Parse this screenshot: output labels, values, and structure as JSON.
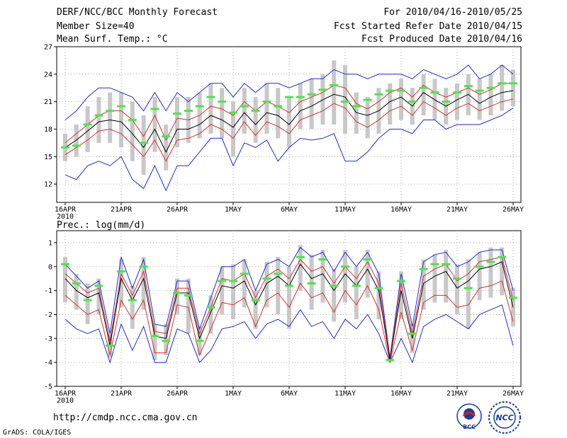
{
  "header": {
    "title": "DERF/NCC/BCC Monthly Forecast",
    "member_size": "Member Size=40",
    "variable": "Mean Surf. Temp.: °C",
    "period": "For 2010/04/16-2010/05/25",
    "fcst_started": "Fcst Started Refer Date 2010/04/15",
    "fcst_produced": "Fcst Produced Date 2010/04/16"
  },
  "footer": {
    "url": "http://cmdp.ncc.cma.gov.cn",
    "credit": "GrADS: COLA/IGES",
    "logo_bcc": "BCC",
    "logo_ncc": "NCC"
  },
  "colors": {
    "ensemble_mean": "#000000",
    "spread_band": "#d93030",
    "extremes": "#1f2ae0",
    "observed": "#48e848",
    "quartile_bar": "#c8c8c8",
    "grid": "#999999"
  },
  "chart_data": [
    {
      "type": "line",
      "title": "Mean Surf. Temp.: °C",
      "ylim": [
        10,
        27
      ],
      "yticks": [
        12,
        15,
        18,
        21,
        24,
        27
      ],
      "xticks": [
        {
          "day": 0,
          "label": "16APR",
          "sub": "2010"
        },
        {
          "day": 5,
          "label": "21APR"
        },
        {
          "day": 10,
          "label": "26APR"
        },
        {
          "day": 15,
          "label": "1MAY"
        },
        {
          "day": 20,
          "label": "6MAY"
        },
        {
          "day": 25,
          "label": "11MAY"
        },
        {
          "day": 30,
          "label": "16MAY"
        },
        {
          "day": 35,
          "label": "21MAY"
        },
        {
          "day": 40,
          "label": "26MAY"
        }
      ],
      "series": [
        {
          "name": "ensemble-mean",
          "values": [
            16.0,
            16.8,
            17.8,
            18.8,
            19.0,
            18.8,
            17.5,
            16.0,
            18.0,
            15.5,
            18.0,
            18.0,
            18.5,
            19.5,
            19.0,
            18.2,
            19.8,
            18.5,
            19.8,
            19.5,
            18.5,
            20.0,
            20.5,
            21.2,
            21.8,
            21.5,
            19.8,
            19.5,
            20.0,
            21.0,
            21.5,
            20.5,
            22.0,
            21.2,
            20.5,
            21.2,
            21.8,
            20.8,
            21.5,
            22.0,
            22.2
          ]
        },
        {
          "name": "spread-upper",
          "values": [
            16.5,
            17.5,
            18.5,
            19.5,
            20.0,
            20.0,
            19.0,
            17.2,
            19.5,
            16.8,
            19.2,
            19.0,
            19.5,
            20.5,
            20.2,
            19.5,
            21.0,
            20.0,
            21.0,
            20.5,
            19.8,
            21.0,
            21.5,
            22.0,
            22.8,
            22.5,
            20.8,
            20.2,
            21.0,
            22.0,
            22.5,
            21.5,
            22.8,
            22.0,
            21.5,
            22.0,
            22.5,
            21.8,
            22.3,
            23.0,
            23.0
          ]
        },
        {
          "name": "spread-lower",
          "values": [
            15.2,
            16.0,
            16.8,
            17.8,
            18.0,
            17.5,
            16.3,
            15.0,
            16.8,
            14.5,
            16.8,
            17.0,
            17.5,
            18.5,
            18.0,
            17.0,
            18.8,
            17.3,
            18.8,
            18.3,
            17.5,
            19.0,
            19.5,
            20.0,
            20.8,
            20.3,
            18.8,
            18.2,
            19.0,
            20.0,
            20.5,
            19.5,
            21.0,
            20.3,
            19.5,
            20.3,
            20.8,
            20.0,
            20.5,
            21.0,
            21.3
          ]
        },
        {
          "name": "max",
          "values": [
            19.0,
            20.0,
            21.5,
            22.5,
            22.5,
            22.0,
            21.5,
            20.0,
            22.0,
            20.0,
            22.0,
            21.0,
            22.0,
            23.0,
            23.0,
            21.5,
            23.0,
            22.0,
            23.0,
            23.0,
            22.5,
            23.0,
            23.5,
            23.5,
            24.5,
            24.0,
            24.0,
            23.5,
            24.0,
            24.0,
            24.0,
            23.5,
            24.5,
            24.0,
            23.5,
            24.0,
            25.0,
            23.5,
            24.0,
            25.0,
            24.0
          ]
        },
        {
          "name": "min",
          "values": [
            13.0,
            12.5,
            14.0,
            14.5,
            14.0,
            15.0,
            12.5,
            11.5,
            14.0,
            11.3,
            14.0,
            14.0,
            15.5,
            17.0,
            17.0,
            14.0,
            16.5,
            16.0,
            16.8,
            14.5,
            16.0,
            17.0,
            16.8,
            17.0,
            17.5,
            14.5,
            14.5,
            15.5,
            17.0,
            18.0,
            18.0,
            17.5,
            19.0,
            19.0,
            18.0,
            18.5,
            18.5,
            18.5,
            19.0,
            19.5,
            20.3
          ]
        },
        {
          "name": "observed",
          "values": [
            16.0,
            16.2,
            18.5,
            19.5,
            20.0,
            20.5,
            19.0,
            16.5,
            20.2,
            17.2,
            19.7,
            20.0,
            20.5,
            21.5,
            21.0,
            19.8,
            20.5,
            20.0,
            21.0,
            20.5,
            21.5,
            21.5,
            21.8,
            22.3,
            22.8,
            21.0,
            20.5,
            21.2,
            21.8,
            22.2,
            22.2,
            21.0,
            22.5,
            22.0,
            21.0,
            22.0,
            22.7,
            22.2,
            22.5,
            23.0,
            23.0
          ]
        },
        {
          "name": "quartile-top",
          "values": [
            17.5,
            18.5,
            20.5,
            21.5,
            22.0,
            22.0,
            21.0,
            19.5,
            21.5,
            18.5,
            21.5,
            21.5,
            22.0,
            23.0,
            22.5,
            21.0,
            22.5,
            21.5,
            23.0,
            22.5,
            21.5,
            23.0,
            23.5,
            24.0,
            25.5,
            25.0,
            22.0,
            21.5,
            22.5,
            23.0,
            23.5,
            22.5,
            24.0,
            23.5,
            22.5,
            23.0,
            24.0,
            23.5,
            24.0,
            25.0,
            24.5
          ]
        },
        {
          "name": "quartile-bottom",
          "values": [
            14.5,
            15.0,
            15.5,
            16.5,
            16.5,
            16.0,
            14.5,
            13.0,
            15.5,
            13.5,
            16.0,
            16.5,
            17.0,
            17.5,
            17.0,
            15.0,
            17.5,
            16.5,
            17.5,
            17.0,
            16.0,
            18.0,
            18.0,
            18.5,
            18.5,
            17.5,
            17.5,
            17.0,
            17.5,
            18.5,
            19.0,
            18.5,
            19.5,
            19.0,
            18.5,
            19.0,
            19.5,
            19.0,
            19.5,
            20.0,
            20.5
          ]
        }
      ]
    },
    {
      "type": "line",
      "title": "Prec.: log(mm/d)",
      "ylim": [
        -5,
        1.5
      ],
      "yticks": [
        -5,
        -4,
        -3,
        -2,
        -1,
        0,
        1
      ],
      "xticks": [
        {
          "day": 0,
          "label": "16APR",
          "sub": "2010"
        },
        {
          "day": 5,
          "label": "21APR"
        },
        {
          "day": 10,
          "label": "26APR"
        },
        {
          "day": 15,
          "label": "1MAY"
        },
        {
          "day": 20,
          "label": "6MAY"
        },
        {
          "day": 25,
          "label": "11MAY"
        },
        {
          "day": 30,
          "label": "16MAY"
        },
        {
          "day": 35,
          "label": "21MAY"
        },
        {
          "day": 40,
          "label": "26MAY"
        }
      ],
      "series": [
        {
          "name": "ensemble-mean",
          "values": [
            -0.5,
            -1.0,
            -1.3,
            -1.1,
            -3.3,
            -0.5,
            -1.4,
            -0.5,
            -2.9,
            -3.0,
            -1.1,
            -1.1,
            -3.0,
            -1.9,
            -0.8,
            -0.9,
            -0.6,
            -1.6,
            -0.7,
            -0.4,
            -0.8,
            0.1,
            -0.5,
            -0.3,
            -1.0,
            -0.3,
            -0.8,
            -0.1,
            -1.0,
            -3.9,
            -1.0,
            -3.0,
            -0.7,
            -0.4,
            -0.2,
            -0.9,
            -0.6,
            -0.1,
            0.0,
            0.2,
            -1.7
          ]
        },
        {
          "name": "spread-upper",
          "values": [
            -0.3,
            -0.7,
            -1.1,
            -0.9,
            -3.1,
            -0.3,
            -1.2,
            -0.2,
            -2.7,
            -2.8,
            -0.9,
            -0.9,
            -2.8,
            -1.7,
            -0.5,
            -0.6,
            -0.3,
            -1.3,
            -0.4,
            -0.1,
            -0.5,
            0.3,
            -0.2,
            0.0,
            -0.7,
            0.0,
            -0.5,
            0.2,
            -0.7,
            -3.8,
            -0.7,
            -2.8,
            -0.4,
            -0.1,
            0.1,
            -0.6,
            -0.3,
            0.2,
            0.3,
            0.4,
            -1.4
          ]
        },
        {
          "name": "spread-lower",
          "values": [
            -1.2,
            -1.6,
            -2.0,
            -1.8,
            -3.7,
            -1.4,
            -2.2,
            -1.4,
            -3.6,
            -3.6,
            -1.6,
            -1.7,
            -3.7,
            -2.6,
            -1.5,
            -1.6,
            -1.3,
            -2.5,
            -1.4,
            -1.1,
            -1.7,
            -0.7,
            -1.3,
            -1.1,
            -1.9,
            -1.0,
            -1.6,
            -0.8,
            -1.8,
            -4.0,
            -1.9,
            -3.5,
            -1.5,
            -1.2,
            -1.2,
            -1.7,
            -1.6,
            -0.9,
            -0.8,
            -0.6,
            -2.3
          ]
        },
        {
          "name": "max",
          "values": [
            0.1,
            -0.4,
            -0.9,
            -0.6,
            -2.8,
            0.4,
            -0.9,
            0.3,
            -2.4,
            -2.5,
            -0.6,
            -0.6,
            -2.6,
            -1.3,
            0.0,
            0.0,
            0.3,
            -1.0,
            0.1,
            0.3,
            0.0,
            0.8,
            0.4,
            0.6,
            -0.2,
            0.6,
            0.0,
            0.6,
            -0.3,
            -3.8,
            -0.3,
            -2.5,
            0.2,
            0.5,
            0.6,
            0.0,
            0.2,
            0.6,
            0.7,
            0.7,
            -1.0
          ]
        },
        {
          "name": "min",
          "values": [
            -2.2,
            -2.6,
            -2.8,
            -2.6,
            -4.0,
            -2.4,
            -3.5,
            -2.5,
            -4.0,
            -4.0,
            -2.6,
            -2.8,
            -4.0,
            -3.5,
            -2.6,
            -2.5,
            -2.3,
            -3.0,
            -2.4,
            -2.2,
            -2.5,
            -1.8,
            -2.5,
            -2.3,
            -3.0,
            -2.2,
            -2.6,
            -2.0,
            -2.8,
            -4.0,
            -3.0,
            -4.0,
            -2.5,
            -2.2,
            -2.0,
            -2.3,
            -2.6,
            -2.0,
            -1.8,
            -1.6,
            -3.3
          ]
        },
        {
          "name": "observed",
          "values": [
            0.1,
            -0.7,
            -1.4,
            -0.8,
            -3.3,
            -0.2,
            -1.4,
            0.0,
            -2.9,
            -3.1,
            -1.1,
            -1.2,
            -3.1,
            -1.7,
            -0.6,
            -0.6,
            -0.3,
            -1.4,
            -0.5,
            -0.3,
            -0.8,
            0.4,
            -0.7,
            0.3,
            -0.8,
            0.0,
            -0.8,
            0.3,
            -0.9,
            -3.9,
            -0.6,
            -2.8,
            -0.1,
            0.1,
            0.1,
            -0.5,
            -0.9,
            0.0,
            0.2,
            0.4,
            -1.3
          ]
        },
        {
          "name": "quartile-top",
          "values": [
            0.4,
            -0.3,
            -0.7,
            -0.5,
            -2.8,
            0.3,
            -0.8,
            0.4,
            -2.4,
            -2.4,
            -0.5,
            -0.5,
            -2.5,
            -1.2,
            0.0,
            0.1,
            0.3,
            -1.0,
            0.2,
            0.4,
            0.0,
            0.9,
            0.5,
            0.7,
            -0.1,
            0.7,
            0.0,
            0.7,
            -0.2,
            -3.9,
            -0.2,
            -2.4,
            0.3,
            0.5,
            0.7,
            0.1,
            0.3,
            0.6,
            0.8,
            0.8,
            -0.9
          ]
        },
        {
          "name": "quartile-bottom",
          "values": [
            -1.5,
            -1.8,
            -2.4,
            -2.0,
            -3.8,
            -1.7,
            -2.6,
            -1.8,
            -3.9,
            -3.7,
            -2.0,
            -2.8,
            -3.7,
            -2.8,
            -2.0,
            -2.2,
            -1.7,
            -2.6,
            -1.7,
            -2.0,
            -2.6,
            -1.0,
            -1.8,
            -1.5,
            -2.3,
            -1.5,
            -2.2,
            -1.3,
            -2.2,
            -3.9,
            -2.2,
            -3.6,
            -1.8,
            -1.5,
            -1.5,
            -2.0,
            -2.6,
            -1.4,
            -1.3,
            -1.2,
            -2.5
          ]
        }
      ]
    }
  ]
}
